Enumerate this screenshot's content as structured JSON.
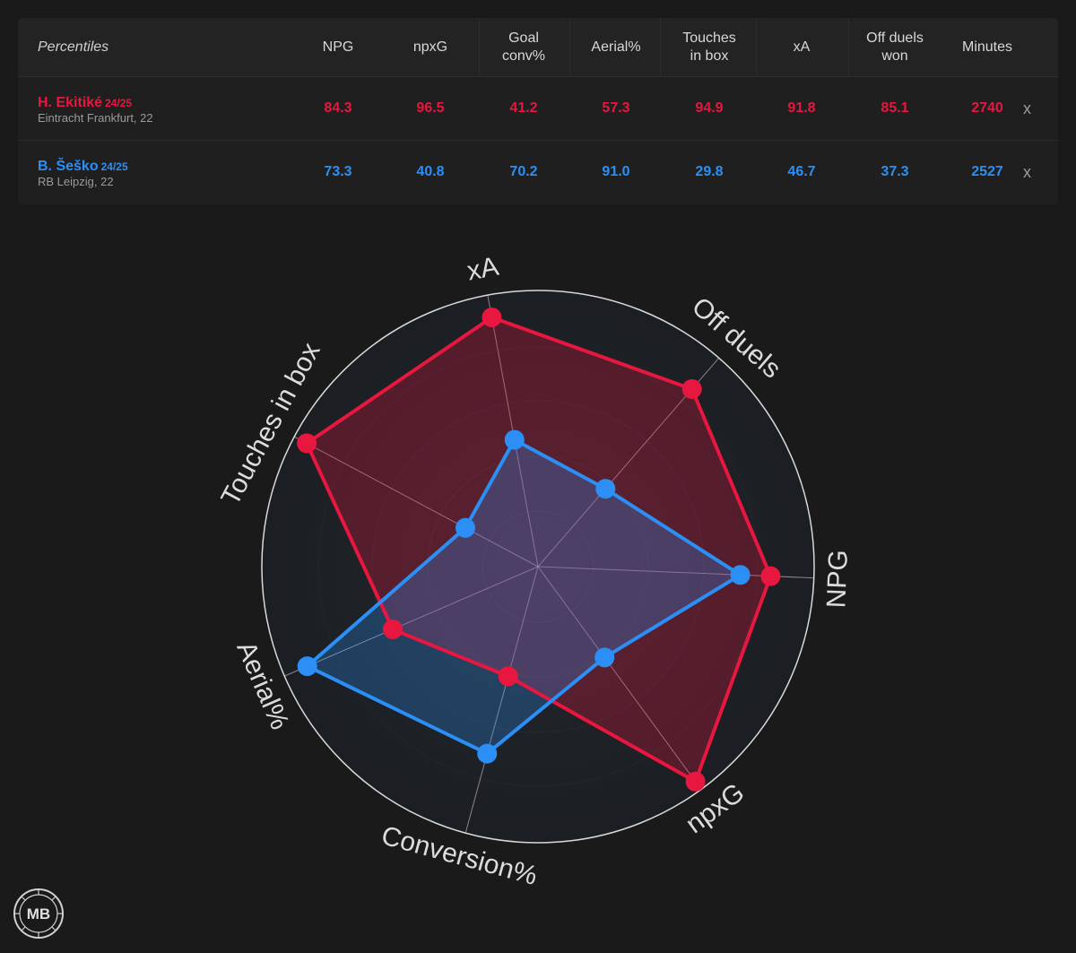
{
  "table": {
    "percentiles_label": "Percentiles",
    "columns": [
      "NPG",
      "npxG",
      "Goal\nconv%",
      "Aerial%",
      "Touches\nin box",
      "xA",
      "Off duels\nwon",
      "Minutes"
    ],
    "remove_label": "x"
  },
  "players": [
    {
      "name": "H. Ekitiké",
      "season": "24/25",
      "team": "Eintracht Frankfurt, 22",
      "color": "#e8173f",
      "values": [
        "84.3",
        "96.5",
        "41.2",
        "57.3",
        "94.9",
        "91.8",
        "85.1",
        "2740"
      ]
    },
    {
      "name": "B. Šeško",
      "season": "24/25",
      "team": "RB Leipzig, 22",
      "color": "#2b8ff5",
      "values": [
        "73.3",
        "40.8",
        "70.2",
        "91.0",
        "29.8",
        "46.7",
        "37.3",
        "2527"
      ]
    }
  ],
  "chart_data": {
    "type": "radar",
    "axes": [
      "xA",
      "Off duels",
      "NPG",
      "npxG",
      "Conversion%",
      "Aerial%",
      "Touches in box"
    ],
    "range": [
      0,
      100
    ],
    "series": [
      {
        "name": "H. Ekitiké",
        "color": "#e8173f",
        "values": [
          91.8,
          85.1,
          84.3,
          96.5,
          41.2,
          57.3,
          94.9
        ]
      },
      {
        "name": "B. Šeško",
        "color": "#2b8ff5",
        "values": [
          46.7,
          37.3,
          73.3,
          40.8,
          70.2,
          91.0,
          29.8
        ]
      }
    ]
  },
  "logo": {
    "text": "MB"
  }
}
